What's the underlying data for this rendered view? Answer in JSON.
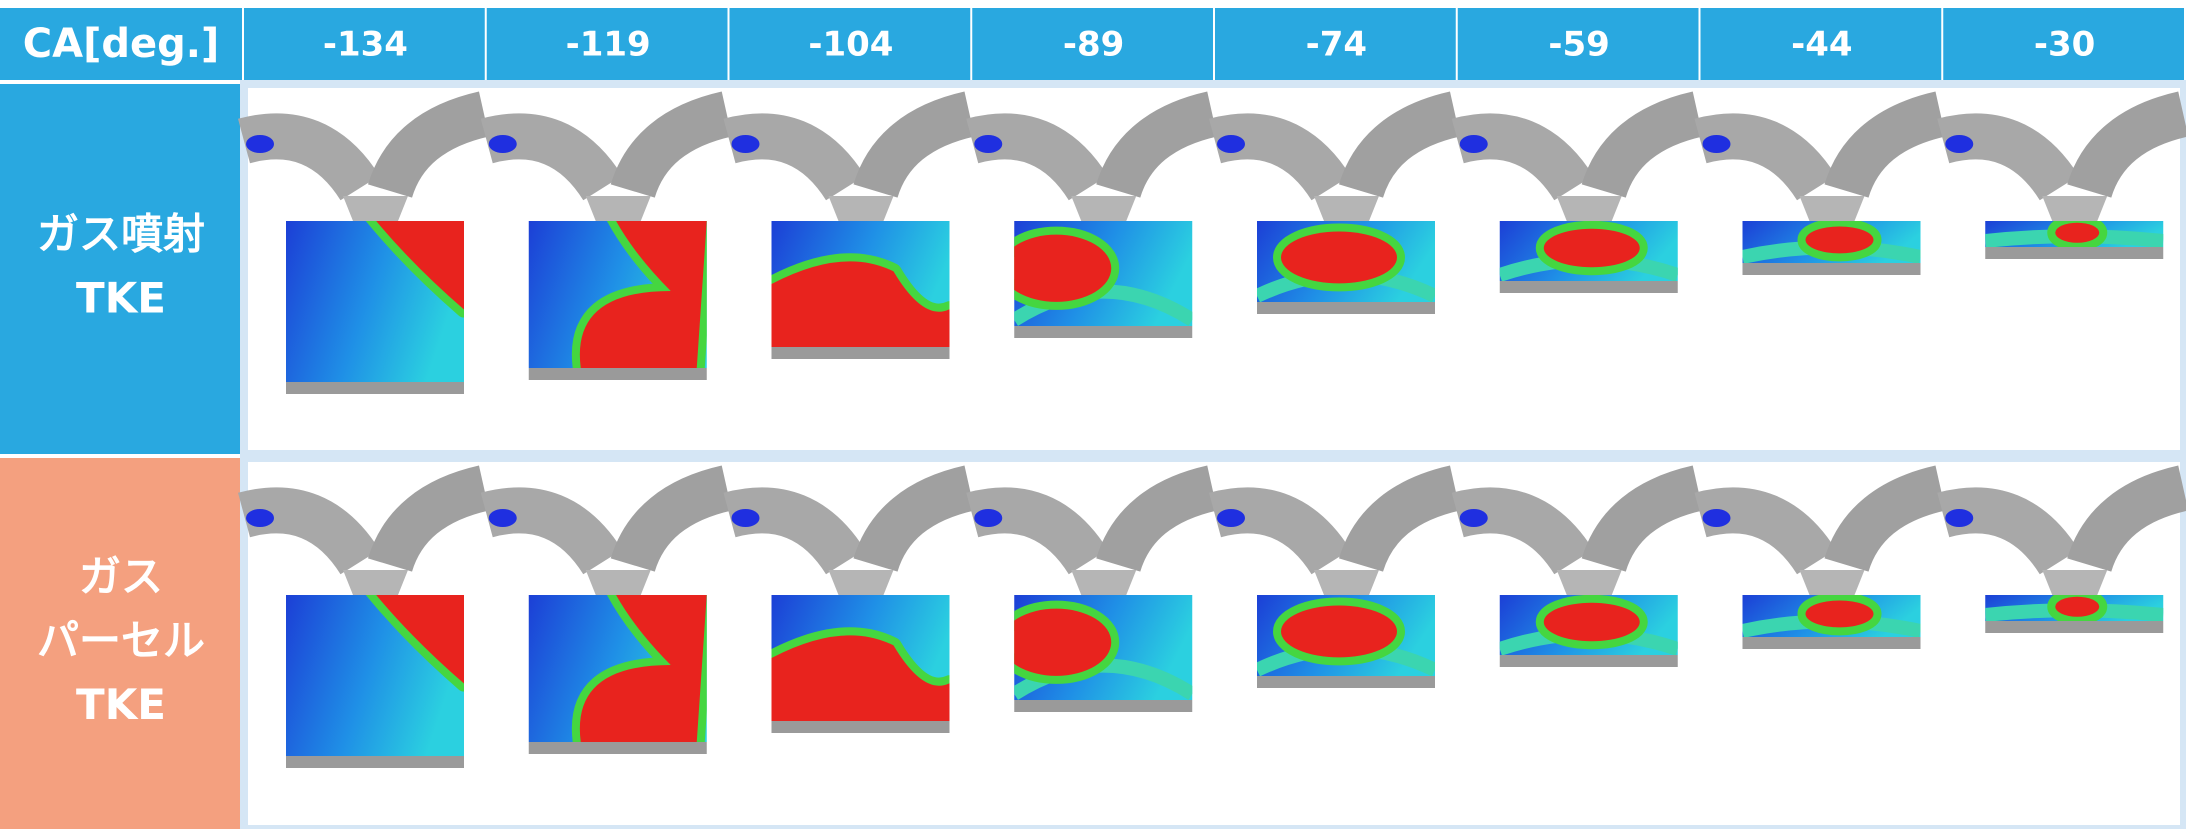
{
  "header": {
    "corner": "CA[deg.]",
    "columns": [
      "-134",
      "-119",
      "-104",
      "-89",
      "-74",
      "-59",
      "-44",
      "-30"
    ]
  },
  "rows": [
    {
      "label": [
        "ガス噴射",
        "TKE"
      ]
    },
    {
      "label": [
        "ガス",
        "パーセル",
        "TKE"
      ]
    }
  ]
}
